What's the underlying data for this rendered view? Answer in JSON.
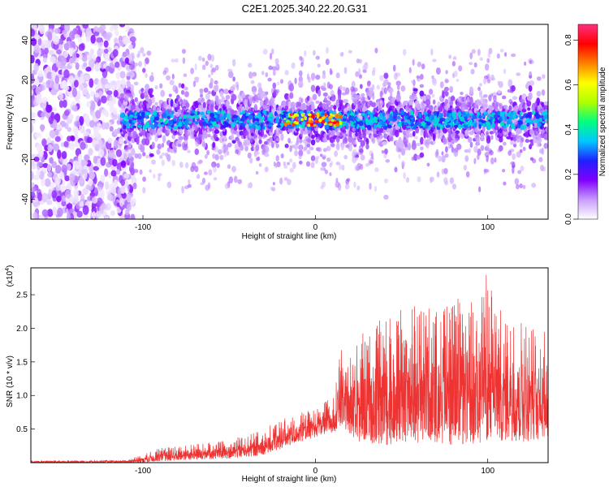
{
  "title": "C2E1.2025.340.22.20.G31",
  "chart_data": [
    {
      "type": "heatmap",
      "xlabel": "Height of straight line (km)",
      "ylabel": "Frequency (Hz)",
      "xlim": [
        -165,
        135
      ],
      "ylim": [
        -50,
        48
      ],
      "xticks": [
        -100,
        0,
        100
      ],
      "xtick_labels": [
        "-100",
        "0",
        "100"
      ],
      "yticks": [
        -40,
        -20,
        0,
        20,
        40
      ],
      "ytick_labels": [
        "-40",
        "-20",
        "0",
        "20",
        "40"
      ],
      "colorbar": {
        "label": "Normalized spectral amplitude",
        "range": [
          0.0,
          0.87
        ],
        "ticks": [
          0.0,
          0.2,
          0.4,
          0.6,
          0.8
        ],
        "tick_labels": [
          "0.0",
          "0.2",
          "0.4",
          "0.6",
          "0.8"
        ],
        "colors": [
          "#ffffff",
          "#c79dff",
          "#8000ff",
          "#2020ff",
          "#00c8ff",
          "#00ff80",
          "#b0ff00",
          "#ffff00",
          "#ff8000",
          "#ff0000",
          "#ff3080"
        ]
      },
      "features": {
        "noise_region_x": [
          -165,
          -105
        ],
        "signal_band_x": [
          -112,
          135
        ],
        "hotspot_x": [
          -18,
          15
        ]
      }
    },
    {
      "type": "line",
      "color": "#ee3333",
      "xlabel": "Height of straight line (km)",
      "ylabel": "SNR (10 * v/v)",
      "scale_label": "(x10",
      "scale_exp": "4",
      "scale_close": ")",
      "xlim": [
        -165,
        135
      ],
      "ylim": [
        0,
        2.9
      ],
      "xticks": [
        -100,
        0,
        100
      ],
      "xtick_labels": [
        "-100",
        "0",
        "100"
      ],
      "yticks": [
        0.5,
        1.0,
        1.5,
        2.0,
        2.5
      ],
      "ytick_labels": [
        "0.5",
        "1.0",
        "1.5",
        "2.0",
        "2.5"
      ],
      "envelope_x": [
        -165,
        -110,
        -100,
        -90,
        -80,
        -70,
        -60,
        -50,
        -40,
        -30,
        -20,
        -10,
        0,
        10,
        15,
        20,
        25,
        30,
        40,
        50,
        60,
        70,
        80,
        90,
        100,
        110,
        120,
        130,
        135
      ],
      "envelope_upper": [
        0.03,
        0.04,
        0.12,
        0.22,
        0.25,
        0.28,
        0.3,
        0.35,
        0.4,
        0.5,
        0.65,
        0.75,
        0.8,
        1.0,
        1.7,
        1.6,
        2.0,
        1.9,
        2.2,
        2.3,
        2.4,
        2.3,
        2.5,
        2.4,
        2.9,
        2.1,
        2.2,
        2.0,
        2.0
      ],
      "envelope_lower": [
        0.0,
        0.0,
        0.0,
        0.02,
        0.03,
        0.04,
        0.05,
        0.06,
        0.08,
        0.12,
        0.2,
        0.3,
        0.38,
        0.45,
        0.5,
        0.4,
        0.3,
        0.3,
        0.25,
        0.25,
        0.3,
        0.3,
        0.25,
        0.25,
        0.3,
        0.3,
        0.3,
        0.35,
        0.35
      ]
    }
  ]
}
